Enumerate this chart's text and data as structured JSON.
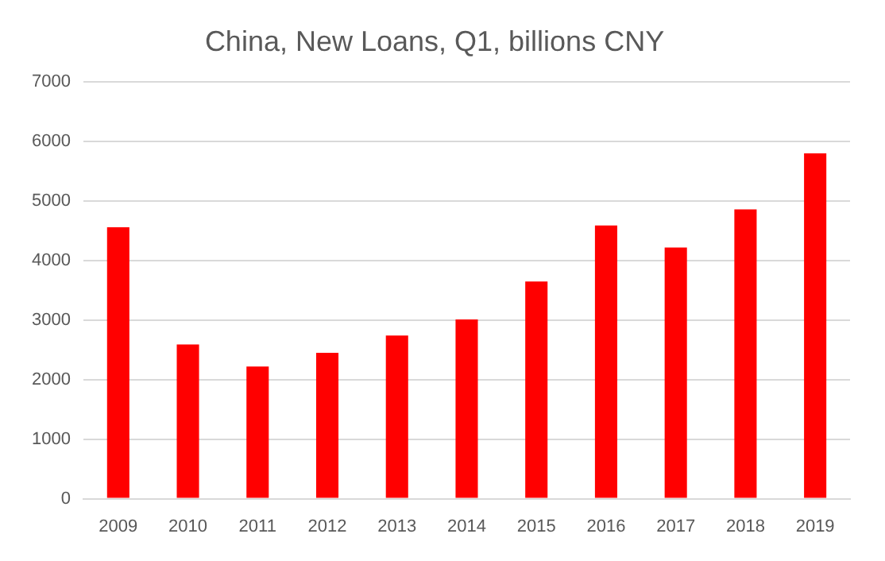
{
  "chart_data": {
    "type": "bar",
    "title": "China, New Loans, Q1, billions CNY",
    "categories": [
      "2009",
      "2010",
      "2011",
      "2012",
      "2013",
      "2014",
      "2015",
      "2016",
      "2017",
      "2018",
      "2019"
    ],
    "values": [
      4560,
      2590,
      2220,
      2450,
      2740,
      3010,
      3650,
      4590,
      4220,
      4860,
      5800
    ],
    "color": "#ff0000",
    "ylim": [
      0,
      7000
    ],
    "yticks": [
      0,
      1000,
      2000,
      3000,
      4000,
      5000,
      6000,
      7000
    ],
    "grid": "y"
  }
}
